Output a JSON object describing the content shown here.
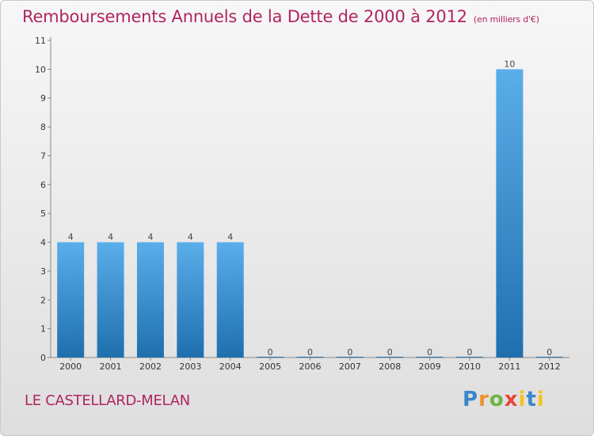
{
  "title": "Remboursements Annuels de la Dette de 2000 à 2012",
  "subtitle": "(en milliers d'€)",
  "commune": "LE CASTELLARD-MELAN",
  "logo": "Proxiti",
  "colors": {
    "title": "#b0255f",
    "bar_top": "#5aaeea",
    "bar_bottom": "#1f6fae"
  },
  "chart_data": {
    "type": "bar",
    "title": "Remboursements Annuels de la Dette de 2000 à 2012",
    "subtitle": "(en milliers d'€)",
    "categories": [
      "2000",
      "2001",
      "2002",
      "2003",
      "2004",
      "2005",
      "2006",
      "2007",
      "2008",
      "2009",
      "2010",
      "2011",
      "2012"
    ],
    "values": [
      4,
      4,
      4,
      4,
      4,
      0,
      0,
      0,
      0,
      0,
      0,
      10,
      0
    ],
    "data_labels": [
      "4",
      "4",
      "4",
      "4",
      "4",
      "0",
      "0",
      "0",
      "0",
      "0",
      "0",
      "10",
      "0"
    ],
    "yticks": [
      "0",
      "1",
      "2",
      "3",
      "4",
      "5",
      "6",
      "7",
      "8",
      "9",
      "10",
      "11"
    ],
    "ylim": [
      0,
      11
    ],
    "xlabel": "",
    "ylabel": "",
    "grid": false,
    "legend": "none"
  }
}
